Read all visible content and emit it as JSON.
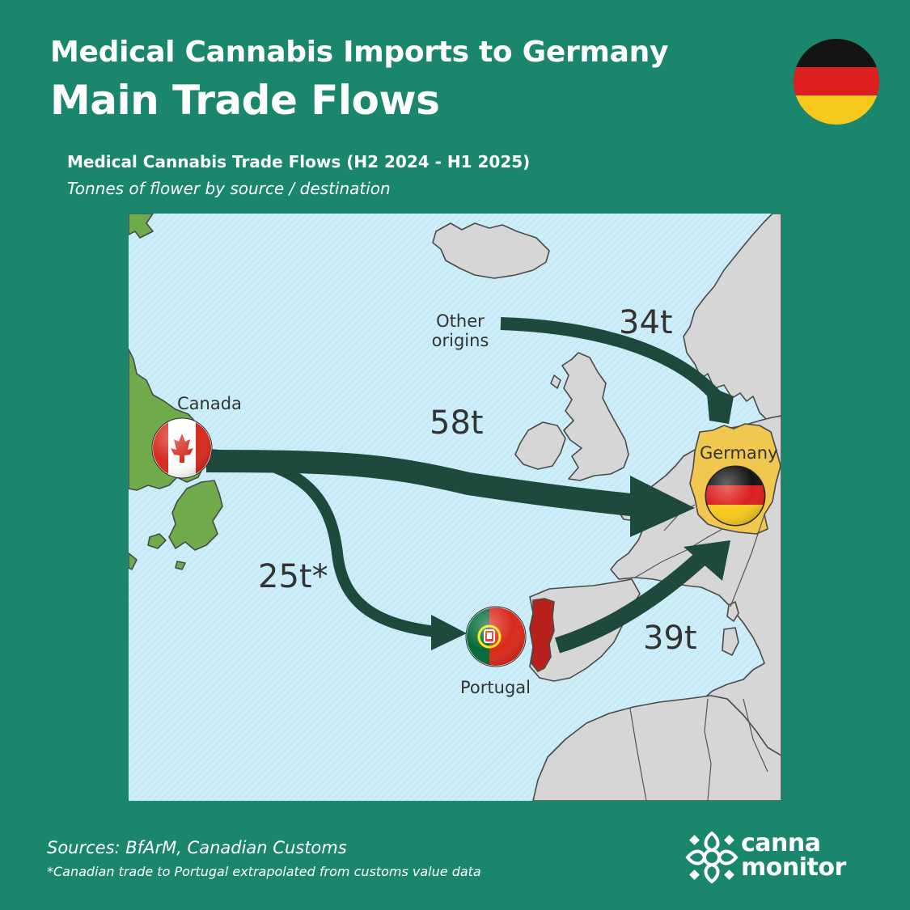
{
  "header": {
    "title_line1": "Medical Cannabis Imports to Germany",
    "title_line2": "Main Trade Flows"
  },
  "chart": {
    "title": "Medical Cannabis Trade Flows (H2 2024 - H1 2025)",
    "subtitle": "Tonnes of flower by source / destination"
  },
  "map": {
    "places": {
      "canada": "Canada",
      "germany": "Germany",
      "portugal": "Portugal",
      "other_line1": "Other",
      "other_line2": "origins"
    },
    "flows": [
      {
        "from": "Canada",
        "to": "Germany",
        "label": "58t",
        "tonnes": 58
      },
      {
        "from": "Other origins",
        "to": "Germany",
        "label": "34t",
        "tonnes": 34
      },
      {
        "from": "Portugal",
        "to": "Germany",
        "label": "39t",
        "tonnes": 39
      },
      {
        "from": "Canada",
        "to": "Portugal",
        "label": "25t*",
        "tonnes": 25
      }
    ],
    "colors": {
      "sea": "#cdeef8",
      "land": "#d6d6d6",
      "canada_land": "#6fab4a",
      "germany_land": "#f0c850",
      "portugal_land": "#b8201c",
      "arrow": "#1d4a3d"
    }
  },
  "footer": {
    "sources": "Sources: BfArM, Canadian Customs",
    "note": "*Canadian trade to Portugal extrapolated from customs value data"
  },
  "brand": {
    "line1": "canna",
    "line2": "monitor"
  },
  "icons": {
    "header_flag": "germany-flag-icon",
    "logo": "canna-monitor-logo-icon"
  }
}
